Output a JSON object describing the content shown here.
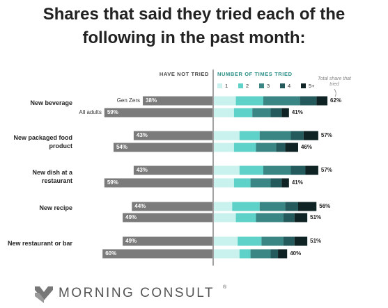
{
  "chart_data": {
    "type": "diverging_stacked_bar",
    "title": "Shares that said they tried each of the following in the past month:",
    "left_header": "HAVE NOT TRIED",
    "right_header": "NUMBER OF TIMES TRIED",
    "total_note": "Total share that tried",
    "categories": [
      "New beverage",
      "New packaged food product",
      "New dish at a restaurant",
      "New recipe",
      "New restaurant or bar"
    ],
    "groups": [
      "Gen Zers",
      "All adults"
    ],
    "not_tried": {
      "color": "#7b7b7b",
      "values": [
        [
          38,
          59
        ],
        [
          43,
          54
        ],
        [
          43,
          59
        ],
        [
          44,
          49
        ],
        [
          49,
          60
        ]
      ],
      "value_labels": [
        [
          "38%",
          "59%"
        ],
        [
          "43%",
          "54%"
        ],
        [
          "43%",
          "59%"
        ],
        [
          "44%",
          "49%"
        ],
        [
          "49%",
          "60%"
        ]
      ]
    },
    "series": [
      {
        "name": "1",
        "color": "#c9f2ee",
        "values": [
          [
            12,
            11
          ],
          [
            14,
            11
          ],
          [
            14,
            11
          ],
          [
            10,
            12
          ],
          [
            13,
            14
          ]
        ]
      },
      {
        "name": "2",
        "color": "#5ed2c8",
        "values": [
          [
            15,
            10
          ],
          [
            11,
            12
          ],
          [
            13,
            9
          ],
          [
            15,
            11
          ],
          [
            13,
            6
          ]
        ]
      },
      {
        "name": "3",
        "color": "#3a8684",
        "values": [
          [
            20,
            10
          ],
          [
            17,
            11
          ],
          [
            15,
            11
          ],
          [
            14,
            15
          ],
          [
            12,
            11
          ]
        ]
      },
      {
        "name": "4",
        "color": "#245a5b",
        "values": [
          [
            9,
            6
          ],
          [
            7,
            5
          ],
          [
            8,
            6
          ],
          [
            7,
            6
          ],
          [
            6,
            4
          ]
        ]
      },
      {
        "name": "5+",
        "color": "#0f2324",
        "values": [
          [
            6,
            4
          ],
          [
            8,
            7
          ],
          [
            7,
            4
          ],
          [
            10,
            7
          ],
          [
            7,
            5
          ]
        ]
      }
    ],
    "tried_total": {
      "values": [
        [
          62,
          41
        ],
        [
          57,
          46
        ],
        [
          57,
          41
        ],
        [
          56,
          51
        ],
        [
          51,
          40
        ]
      ],
      "value_labels": [
        [
          "62%",
          "41%"
        ],
        [
          "57%",
          "46%"
        ],
        [
          "57%",
          "41%"
        ],
        [
          "56%",
          "51%"
        ],
        [
          "51%",
          "40%"
        ]
      ]
    },
    "brand": "MORNING CONSULT",
    "brand_mark": "®"
  }
}
